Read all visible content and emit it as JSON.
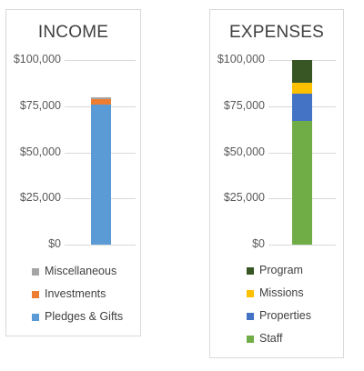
{
  "chart_data": [
    {
      "type": "bar",
      "stacked": true,
      "title": "INCOME",
      "ylim": [
        0,
        100000
      ],
      "yticks": [
        "$100,000",
        "$75,000",
        "$50,000",
        "$25,000",
        "$0"
      ],
      "gridlines": true,
      "legend_position": "bottom",
      "series": [
        {
          "name": "Pledges & Gifts",
          "values": [
            76000
          ],
          "color": "#5b9bd5"
        },
        {
          "name": "Investments",
          "values": [
            3000
          ],
          "color": "#ed7d31"
        },
        {
          "name": "Miscellaneous",
          "values": [
            1000
          ],
          "color": "#a5a5a5"
        }
      ]
    },
    {
      "type": "bar",
      "stacked": true,
      "title": "EXPENSES",
      "ylim": [
        0,
        100000
      ],
      "yticks": [
        "$100,000",
        "$75,000",
        "$50,000",
        "$25,000",
        "$0"
      ],
      "gridlines": true,
      "legend_position": "bottom",
      "series": [
        {
          "name": "Staff",
          "values": [
            67000
          ],
          "color": "#70ad47"
        },
        {
          "name": "Properties",
          "values": [
            15000
          ],
          "color": "#4472c4"
        },
        {
          "name": "Missions",
          "values": [
            5500
          ],
          "color": "#ffc000"
        },
        {
          "name": "Program",
          "values": [
            12500
          ],
          "color": "#375623"
        }
      ]
    }
  ]
}
